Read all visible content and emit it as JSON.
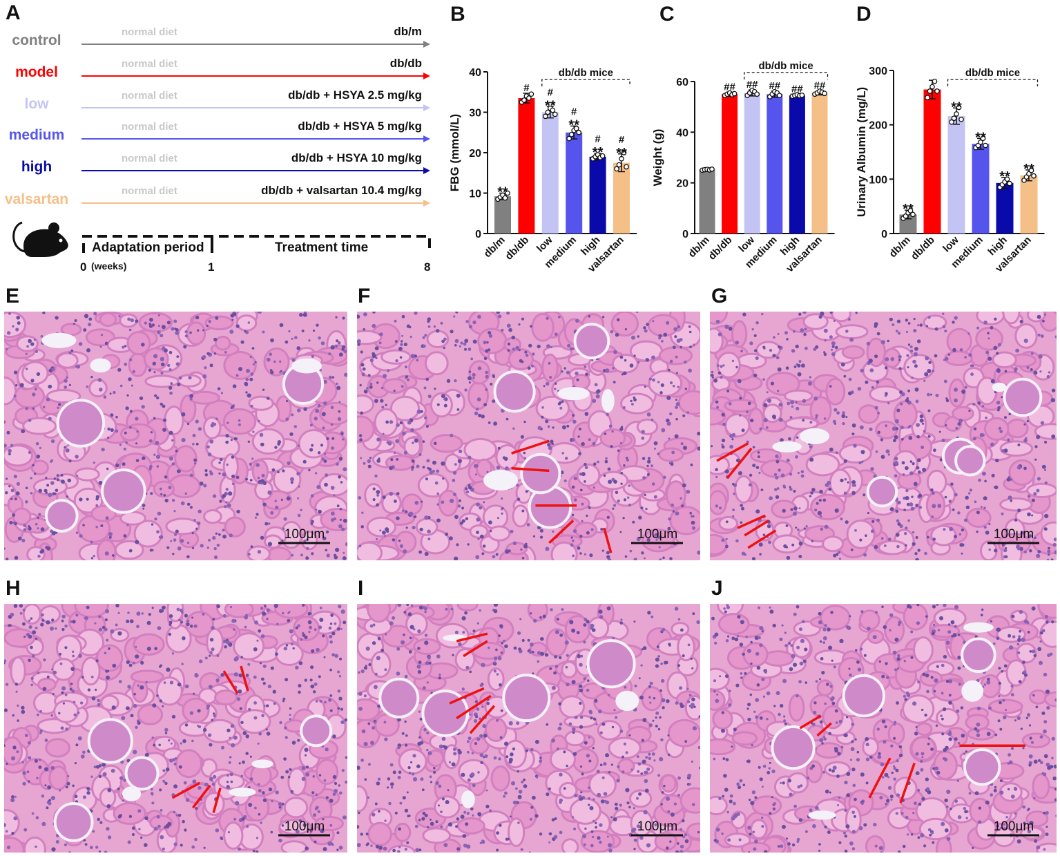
{
  "panel_a": {
    "letter": "A",
    "groups": [
      {
        "label": "control",
        "diet": "normal diet",
        "treatment": "db/m",
        "color": "#808080"
      },
      {
        "label": "model",
        "diet": "normal diet",
        "treatment": "db/db",
        "color": "#ff0000"
      },
      {
        "label": "low",
        "diet": "normal diet",
        "treatment": "db/db + HSYA 2.5 mg/kg",
        "color": "#c4c4f4"
      },
      {
        "label": "medium",
        "diet": "normal diet",
        "treatment": "db/db + HSYA 5 mg/kg",
        "color": "#5555ee"
      },
      {
        "label": "high",
        "diet": "normal diet",
        "treatment": "db/db + HSYA 10 mg/kg",
        "color": "#0a0aaa"
      },
      {
        "label": "valsartan",
        "diet": "normal diet",
        "treatment": "db/db + valsartan 10.4 mg/kg",
        "color": "#f5bf88"
      }
    ],
    "timeline": {
      "adaptation": "Adaptation period",
      "treatment": "Treatment time",
      "start": "0",
      "unit": "(weeks)",
      "mid": "1",
      "end": "8"
    }
  },
  "chart_data": [
    {
      "letter": "B",
      "type": "bar",
      "ylabel": "FBG (mmol/L)",
      "ylim": [
        0,
        40
      ],
      "yticks": [
        "0",
        "10",
        "20",
        "30",
        "40"
      ],
      "categories": [
        "db/m",
        "db/db",
        "low",
        "medium",
        "high",
        "valsartan"
      ],
      "values": [
        9.2,
        33.5,
        30.0,
        25.0,
        19.0,
        17.5
      ],
      "errors": [
        0.8,
        1.2,
        1.4,
        1.6,
        0.8,
        2.2
      ],
      "points": [
        [
          8.5,
          9.0,
          9.5,
          8.8,
          10.0
        ],
        [
          32.5,
          33.0,
          34.0,
          33.5,
          34.5
        ],
        [
          29.0,
          30.0,
          31.0,
          30.5,
          29.5
        ],
        [
          23.5,
          24.5,
          25.5,
          26.0,
          25.0
        ],
        [
          18.5,
          19.0,
          19.5,
          18.8,
          19.2
        ],
        [
          16.0,
          17.0,
          18.5,
          20.0,
          16.5
        ]
      ],
      "marks": [
        [
          "**"
        ],
        [
          "#"
        ],
        [
          "#",
          "**"
        ],
        [
          "#",
          "**"
        ],
        [
          "#",
          "**"
        ],
        [
          "#",
          "**"
        ]
      ],
      "bracket_label": "db/db mice",
      "colors": [
        "#808080",
        "#ff0000",
        "#c4c4f4",
        "#5555ee",
        "#0a0aaa",
        "#f5bf88"
      ]
    },
    {
      "letter": "C",
      "type": "bar",
      "ylabel": "Weight (g)",
      "ylim": [
        0,
        60
      ],
      "yticks": [
        "0",
        "20",
        "40",
        "60"
      ],
      "categories": [
        "db/m",
        "db/db",
        "low",
        "medium",
        "high",
        "valsartan"
      ],
      "values": [
        25.2,
        55.0,
        55.5,
        55.0,
        54.5,
        55.5
      ],
      "errors": [
        0.3,
        0.8,
        1.2,
        1.2,
        0.5,
        0.8
      ],
      "points": [
        [
          25.0,
          25.2,
          25.3,
          25.1,
          25.4
        ],
        [
          54.5,
          55.0,
          55.5,
          54.8,
          55.2
        ],
        [
          54.5,
          55.5,
          56.5,
          56.0,
          55.0
        ],
        [
          54.0,
          55.0,
          56.0,
          55.5,
          54.5
        ],
        [
          54.2,
          54.5,
          54.8,
          54.4,
          54.6
        ],
        [
          55.0,
          55.5,
          56.2,
          55.8,
          55.3
        ]
      ],
      "marks": [
        [],
        [
          "##"
        ],
        [
          "##"
        ],
        [
          "##"
        ],
        [
          "##"
        ],
        [
          "##"
        ]
      ],
      "bracket_label": "db/db mice",
      "colors": [
        "#808080",
        "#ff0000",
        "#c4c4f4",
        "#5555ee",
        "#0a0aaa",
        "#f5bf88"
      ]
    },
    {
      "letter": "D",
      "type": "bar",
      "ylabel": "Urinary Albumin (mg/L)",
      "ylim": [
        0,
        300
      ],
      "yticks": [
        "0",
        "100",
        "200",
        "300"
      ],
      "categories": [
        "db/m",
        "db/db",
        "low",
        "medium",
        "high",
        "valsartan"
      ],
      "values": [
        35,
        265,
        216,
        165,
        93,
        107
      ],
      "errors": [
        8,
        17,
        15,
        10,
        10,
        10
      ],
      "points": [
        [
          28,
          32,
          38,
          42,
          35
        ],
        [
          250,
          262,
          270,
          280,
          262
        ],
        [
          205,
          212,
          220,
          232,
          210
        ],
        [
          158,
          162,
          168,
          175,
          162
        ],
        [
          85,
          90,
          95,
          100,
          92
        ],
        [
          98,
          104,
          110,
          116,
          106
        ]
      ],
      "marks": [
        [
          "**"
        ],
        [],
        [
          "**"
        ],
        [
          "**"
        ],
        [
          "**"
        ],
        [
          "**"
        ]
      ],
      "bracket_label": "db/db mice",
      "colors": [
        "#808080",
        "#ff0000",
        "#c4c4f4",
        "#5555ee",
        "#0a0aaa",
        "#f5bf88"
      ]
    }
  ],
  "histology": [
    {
      "letter": "E",
      "scale": "100μm",
      "arrows": []
    },
    {
      "letter": "F",
      "scale": "100μm",
      "arrows": [
        [
          0.56,
          0.52,
          0.45,
          0.57
        ],
        [
          0.56,
          0.64,
          0.45,
          0.63
        ],
        [
          0.64,
          0.78,
          0.52,
          0.78
        ],
        [
          0.63,
          0.84,
          0.56,
          0.93
        ],
        [
          0.72,
          0.87,
          0.74,
          0.97
        ]
      ]
    },
    {
      "letter": "G",
      "scale": "100μm",
      "arrows": [
        [
          0.11,
          0.53,
          0.02,
          0.6
        ],
        [
          0.12,
          0.55,
          0.05,
          0.67
        ],
        [
          0.16,
          0.82,
          0.08,
          0.87
        ],
        [
          0.17,
          0.84,
          0.1,
          0.9
        ],
        [
          0.19,
          0.88,
          0.11,
          0.95
        ]
      ]
    },
    {
      "letter": "H",
      "scale": "100μm",
      "arrows": [
        [
          0.68,
          0.36,
          0.64,
          0.27
        ],
        [
          0.71,
          0.35,
          0.69,
          0.25
        ],
        [
          0.57,
          0.72,
          0.49,
          0.78
        ],
        [
          0.6,
          0.73,
          0.55,
          0.82
        ],
        [
          0.63,
          0.74,
          0.61,
          0.84
        ]
      ]
    },
    {
      "letter": "I",
      "scale": "100μm",
      "arrows": [
        [
          0.38,
          0.12,
          0.29,
          0.15
        ],
        [
          0.38,
          0.15,
          0.31,
          0.21
        ],
        [
          0.37,
          0.34,
          0.27,
          0.4
        ],
        [
          0.39,
          0.37,
          0.29,
          0.46
        ],
        [
          0.4,
          0.41,
          0.33,
          0.52
        ]
      ]
    },
    {
      "letter": "J",
      "scale": "100μm",
      "arrows": [
        [
          0.32,
          0.45,
          0.26,
          0.5
        ],
        [
          0.35,
          0.48,
          0.31,
          0.53
        ],
        [
          0.72,
          0.57,
          0.91,
          0.57
        ],
        [
          0.52,
          0.62,
          0.46,
          0.78
        ],
        [
          0.59,
          0.64,
          0.55,
          0.8
        ]
      ]
    }
  ]
}
